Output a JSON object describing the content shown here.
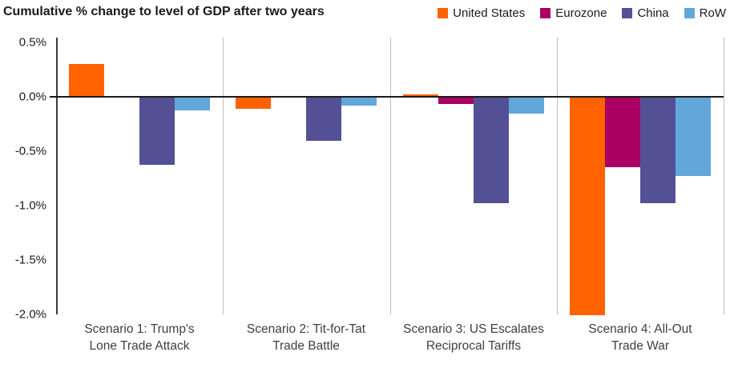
{
  "title": "Cumulative % change to level of GDP after two years",
  "chart_data": {
    "type": "bar",
    "title": "Cumulative % change to level of GDP after two years",
    "unit": "%",
    "categories": [
      [
        "Scenario 1: Trump's",
        "Lone Trade Attack"
      ],
      [
        "Scenario 2: Tit-for-Tat",
        "Trade Battle"
      ],
      [
        "Scenario 3: US Escalates",
        "Reciprocal Tariffs"
      ],
      [
        "Scenario 4: All-Out",
        "Trade War"
      ]
    ],
    "series": [
      {
        "name": "United States",
        "color": "#FF6200",
        "values": [
          0.3,
          -0.1,
          0.02,
          -2.0
        ]
      },
      {
        "name": "Eurozone",
        "color": "#AA0064",
        "values": [
          0.0,
          0.0,
          -0.06,
          -0.64
        ]
      },
      {
        "name": "China",
        "color": "#545096",
        "values": [
          -0.62,
          -0.4,
          -0.97,
          -0.97
        ]
      },
      {
        "name": "RoW",
        "color": "#62A7DA",
        "values": [
          -0.12,
          -0.07,
          -0.15,
          -0.72
        ]
      }
    ],
    "y_ticks": [
      "0.5%",
      "0.0%",
      "-0.5%",
      "-1.0%",
      "-1.5%",
      "-2.0%"
    ],
    "y_tick_values": [
      0.5,
      0.0,
      -0.5,
      -1.0,
      -1.5,
      -2.0
    ],
    "ylim": [
      -2.0,
      0.5
    ],
    "xlabel": "",
    "ylabel": "",
    "legend_position": "top-right",
    "grid": "vertical-panel-separators-only",
    "colors": {
      "axis": "#3c3c3c",
      "zero_line": "#1a1a1a",
      "separator": "#bfbfbf",
      "text": "#1a1a1a",
      "category_text": "#3f3f3f"
    }
  }
}
